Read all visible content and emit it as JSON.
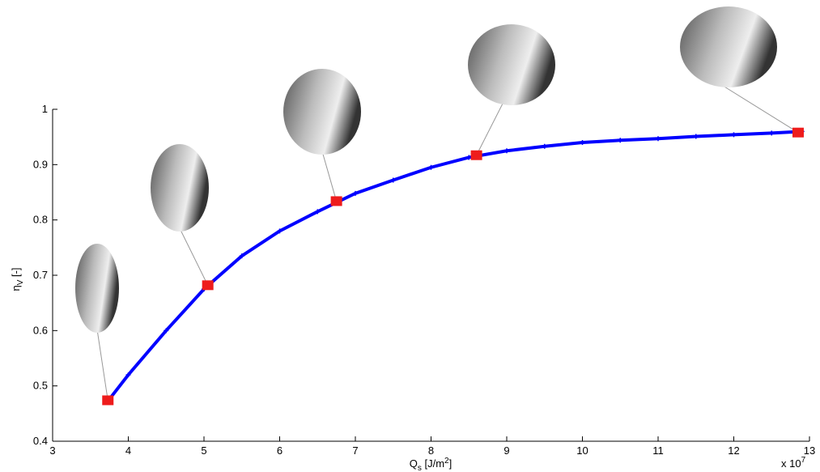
{
  "chart_data": {
    "type": "scatter",
    "xlabel": {
      "main": "Q",
      "sub": "s",
      "rest": " [J/m",
      "sup": "2",
      "end": "]"
    },
    "ylabel": {
      "main": "η",
      "sub": "V",
      "rest": " [-]"
    },
    "xmultiplier": {
      "main": "x 10",
      "sup": "7"
    },
    "xlim": [
      3,
      13
    ],
    "ylim": [
      0.4,
      1
    ],
    "xticks": [
      3,
      4,
      5,
      6,
      7,
      8,
      9,
      10,
      11,
      12,
      13
    ],
    "yticks": [
      0.4,
      0.5,
      0.6,
      0.7,
      0.8,
      0.9,
      1
    ],
    "series": [
      {
        "color": "#0000ff",
        "x": [
          3.75,
          4,
          4.5,
          5,
          5.5,
          6,
          6.5,
          7,
          7.5,
          8,
          8.5,
          9,
          9.5,
          10,
          10.5,
          11,
          11.5,
          12,
          12.5,
          12.9
        ],
        "values": [
          0.476,
          0.52,
          0.6,
          0.675,
          0.735,
          0.78,
          0.815,
          0.848,
          0.872,
          0.895,
          0.913,
          0.925,
          0.933,
          0.94,
          0.944,
          0.947,
          0.951,
          0.954,
          0.957,
          0.96
        ]
      },
      {
        "color": "#ee1c1c",
        "x": [
          3.73,
          5.05,
          6.75,
          8.6,
          12.85
        ],
        "values": [
          0.474,
          0.682,
          0.834,
          0.917,
          0.958
        ]
      }
    ]
  }
}
